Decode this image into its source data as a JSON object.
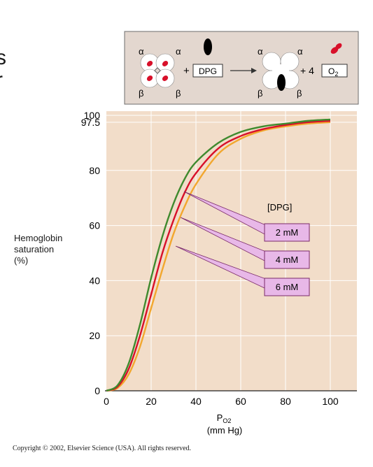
{
  "page": {
    "left_edge_glyph_1": "s",
    "left_edge_glyph_2": "r",
    "copyright": "Copyright © 2002, Elsevier Science (USA). All rights reserved."
  },
  "inset": {
    "alpha": "α",
    "beta": "β",
    "plus": "+",
    "dpg_label": "DPG",
    "four": "+ 4",
    "o2_label": "O",
    "o2_sub": "2"
  },
  "colors": {
    "plot_bg": "#f2ddc9",
    "inset_bg": "#e3d7cf",
    "green": "#3f8a2e",
    "red": "#d8102a",
    "orange": "#f2a72e",
    "callout_fill": "#e8b8e8",
    "callout_stroke": "#7a2a6a"
  },
  "chart_data": {
    "type": "line",
    "title": "",
    "xlabel": "P",
    "xlabel_sub": "O2",
    "xlabel_units": "(mm Hg)",
    "ylabel": "Hemoglobin saturation (%)",
    "ylabel_lines": [
      "Hemoglobin",
      "saturation",
      "(%)"
    ],
    "xlim": [
      0,
      110
    ],
    "ylim": [
      0,
      102
    ],
    "xticks": [
      0,
      20,
      40,
      60,
      80,
      100
    ],
    "yticks": [
      0,
      20,
      40,
      60,
      80,
      97.5,
      100
    ],
    "ytick_labels": [
      "0",
      "20",
      "40",
      "60",
      "80",
      "97.5",
      "100"
    ],
    "grid": true,
    "legend_title": "[DPG]",
    "series": [
      {
        "name": "2 mM",
        "color": "green",
        "x": [
          0,
          5,
          10,
          15,
          20,
          25,
          30,
          35,
          40,
          50,
          60,
          70,
          80,
          90,
          100
        ],
        "y": [
          0,
          2,
          10,
          24,
          41,
          56,
          68,
          77,
          83,
          90,
          94,
          96,
          97,
          98,
          98.5
        ]
      },
      {
        "name": "4 mM",
        "color": "red",
        "x": [
          0,
          5,
          10,
          15,
          20,
          25,
          30,
          35,
          40,
          50,
          60,
          70,
          80,
          90,
          100
        ],
        "y": [
          0,
          1.5,
          8,
          20,
          35,
          50,
          62,
          72,
          79,
          88,
          92.5,
          95,
          96.5,
          97.5,
          98
        ]
      },
      {
        "name": "6 mM",
        "color": "orange",
        "x": [
          0,
          5,
          10,
          15,
          20,
          25,
          30,
          35,
          40,
          50,
          60,
          70,
          80,
          90,
          100
        ],
        "y": [
          0,
          1,
          6,
          16,
          30,
          44,
          57,
          67,
          75,
          86,
          91.5,
          94.5,
          96,
          97,
          97.5
        ]
      }
    ]
  }
}
